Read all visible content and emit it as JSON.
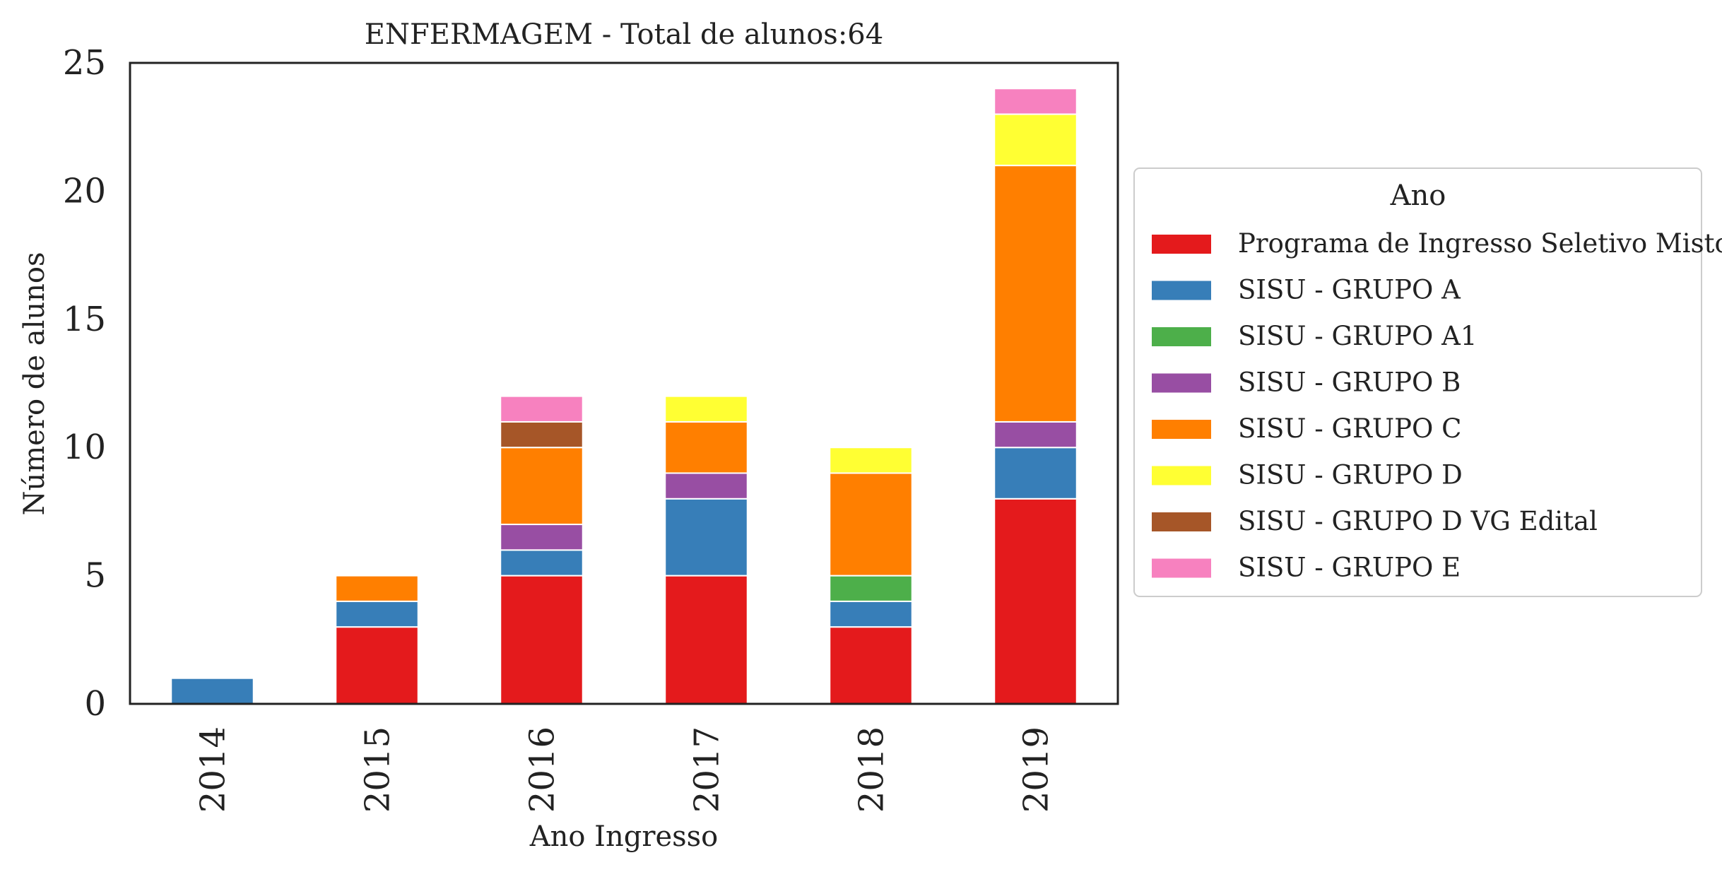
{
  "chart_data": {
    "type": "bar",
    "stacked": true,
    "title": "ENFERMAGEM - Total de alunos:64",
    "xlabel": "Ano Ingresso",
    "ylabel": "Número de alunos",
    "categories": [
      "2014",
      "2015",
      "2016",
      "2017",
      "2018",
      "2019"
    ],
    "ylim": [
      0,
      25
    ],
    "yticks": [
      "0",
      "5",
      "10",
      "15",
      "20",
      "25"
    ],
    "grid": false,
    "legend": {
      "title": "Ano",
      "placement": "right"
    },
    "series": [
      {
        "name": "Programa de Ingresso Seletivo Misto",
        "color": "#e41a1c",
        "values": [
          0,
          3,
          5,
          5,
          3,
          8
        ]
      },
      {
        "name": "SISU - GRUPO A",
        "color": "#377eb8",
        "values": [
          1,
          1,
          1,
          3,
          1,
          2
        ]
      },
      {
        "name": "SISU - GRUPO A1",
        "color": "#4daf4a",
        "values": [
          0,
          0,
          0,
          0,
          1,
          0
        ]
      },
      {
        "name": "SISU - GRUPO B",
        "color": "#984ea3",
        "values": [
          0,
          0,
          1,
          1,
          0,
          1
        ]
      },
      {
        "name": "SISU - GRUPO C",
        "color": "#ff7f00",
        "values": [
          0,
          1,
          3,
          2,
          4,
          10
        ]
      },
      {
        "name": "SISU - GRUPO D",
        "color": "#ffff33",
        "values": [
          0,
          0,
          0,
          1,
          1,
          2
        ]
      },
      {
        "name": "SISU - GRUPO D VG Edital",
        "color": "#a65628",
        "values": [
          0,
          0,
          1,
          0,
          0,
          0
        ]
      },
      {
        "name": "SISU - GRUPO E",
        "color": "#f781bf",
        "values": [
          0,
          0,
          1,
          0,
          0,
          1
        ]
      }
    ]
  }
}
